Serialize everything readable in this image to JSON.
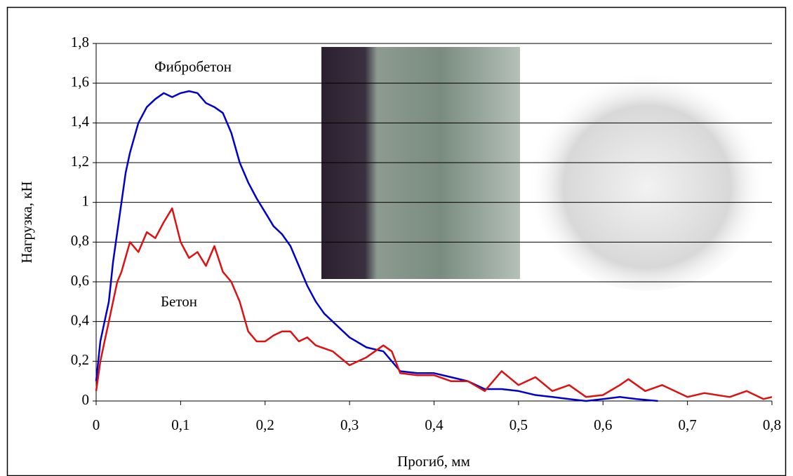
{
  "chart_data": {
    "type": "line",
    "xlabel": "Прогиб, мм",
    "ylabel": "Нагрузка, кН",
    "annotations": [
      "Фибробетон",
      "Бетон"
    ],
    "xlim": [
      0,
      0.8
    ],
    "xticks": [
      0,
      {
        "value": 0.1,
        "label": "0,1"
      },
      {
        "value": 0.2,
        "label": "0,2"
      },
      {
        "value": 0.3,
        "label": "0,3"
      },
      {
        "value": 0.4,
        "label": "0,4"
      },
      {
        "value": 0.5,
        "label": "0,5"
      },
      {
        "value": 0.6,
        "label": "0,6"
      },
      {
        "value": 0.7,
        "label": "0,7"
      },
      {
        "value": 0.8,
        "label": "0,8"
      }
    ],
    "ylim": [
      0,
      1.8
    ],
    "yticks": [
      0,
      {
        "value": 0.2,
        "label": "0,2"
      },
      {
        "value": 0.4,
        "label": "0,4"
      },
      {
        "value": 0.6,
        "label": "0,6"
      },
      {
        "value": 0.8,
        "label": "0,8"
      },
      1,
      {
        "value": 1.2,
        "label": "1,2"
      },
      {
        "value": 1.4,
        "label": "1,4"
      },
      {
        "value": 1.6,
        "label": "1,6"
      },
      {
        "value": 1.8,
        "label": "1,8"
      }
    ],
    "grid": true,
    "series": [
      {
        "color": "#0000cc",
        "x": [
          0,
          0.005,
          0.01,
          0.015,
          0.02,
          0.025,
          0.03,
          0.035,
          0.04,
          0.05,
          0.06,
          0.07,
          0.08,
          0.09,
          0.1,
          0.11,
          0.12,
          0.13,
          0.14,
          0.15,
          0.16,
          0.17,
          0.18,
          0.19,
          0.2,
          0.21,
          0.22,
          0.23,
          0.24,
          0.25,
          0.26,
          0.27,
          0.28,
          0.3,
          0.32,
          0.34,
          0.36,
          0.38,
          0.4,
          0.42,
          0.44,
          0.46,
          0.48,
          0.5,
          0.52,
          0.54,
          0.56,
          0.58,
          0.6,
          0.62,
          0.64,
          0.665
        ],
        "values": [
          0.1,
          0.3,
          0.4,
          0.5,
          0.7,
          0.85,
          1.0,
          1.15,
          1.25,
          1.4,
          1.48,
          1.52,
          1.55,
          1.53,
          1.55,
          1.56,
          1.55,
          1.5,
          1.48,
          1.45,
          1.35,
          1.2,
          1.1,
          1.02,
          0.95,
          0.88,
          0.84,
          0.78,
          0.68,
          0.58,
          0.5,
          0.44,
          0.4,
          0.32,
          0.27,
          0.25,
          0.15,
          0.14,
          0.14,
          0.12,
          0.1,
          0.06,
          0.06,
          0.05,
          0.03,
          0.02,
          0.01,
          0,
          0.01,
          0.02,
          0.01,
          0
        ]
      },
      {
        "color": "#dd1111",
        "x": [
          0,
          0.005,
          0.01,
          0.015,
          0.02,
          0.025,
          0.03,
          0.04,
          0.05,
          0.06,
          0.07,
          0.08,
          0.09,
          0.1,
          0.11,
          0.12,
          0.13,
          0.14,
          0.15,
          0.16,
          0.17,
          0.18,
          0.19,
          0.2,
          0.21,
          0.22,
          0.23,
          0.24,
          0.25,
          0.26,
          0.28,
          0.3,
          0.32,
          0.34,
          0.35,
          0.36,
          0.38,
          0.4,
          0.42,
          0.44,
          0.46,
          0.48,
          0.5,
          0.52,
          0.54,
          0.56,
          0.58,
          0.6,
          0.62,
          0.63,
          0.65,
          0.67,
          0.7,
          0.72,
          0.75,
          0.77,
          0.79,
          0.8
        ],
        "values": [
          0.05,
          0.2,
          0.3,
          0.4,
          0.5,
          0.6,
          0.65,
          0.8,
          0.75,
          0.85,
          0.82,
          0.9,
          0.97,
          0.8,
          0.72,
          0.75,
          0.68,
          0.78,
          0.65,
          0.6,
          0.5,
          0.35,
          0.3,
          0.3,
          0.33,
          0.35,
          0.35,
          0.3,
          0.32,
          0.28,
          0.25,
          0.18,
          0.22,
          0.28,
          0.25,
          0.14,
          0.13,
          0.13,
          0.1,
          0.1,
          0.05,
          0.15,
          0.08,
          0.12,
          0.05,
          0.08,
          0.02,
          0.03,
          0.08,
          0.11,
          0.05,
          0.08,
          0.02,
          0.04,
          0.02,
          0.05,
          0.01,
          0.02
        ]
      }
    ]
  }
}
